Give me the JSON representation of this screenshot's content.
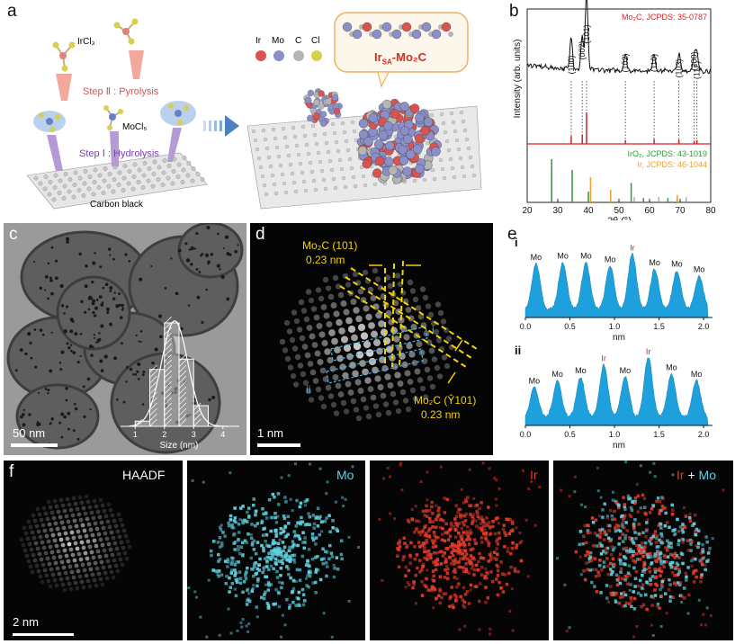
{
  "panels": {
    "a": {
      "label": "a",
      "irCl3": "IrCl₃",
      "moCl5": "MoCl₅",
      "step2": "Step Ⅱ : Pyrolysis",
      "step1": "Step Ⅰ : Hydrolysis",
      "carbon": "Carbon black",
      "legend": [
        "Ir",
        "Mo",
        "C",
        "Cl"
      ],
      "legend_colors": [
        "#d9534f",
        "#8a8fc9",
        "#b5b5b5",
        "#d8d04a"
      ],
      "product": "Ir",
      "product_sub": "SA",
      "product_rest": "-Mo₂C"
    },
    "c": {
      "label": "c",
      "scale": "50 nm",
      "hist_xlabel": "Size (nm)",
      "hist_ticks": [
        "1",
        "2",
        "3",
        "4"
      ]
    },
    "d": {
      "label": "d",
      "top_annot": "Mo₂C (101)",
      "top_dist": "0.23 nm",
      "bot_annot": "Mo₂C (Ŷ1​01)",
      "bot_dist": "0.23 nm",
      "line_i": "i",
      "line_ii": "ii",
      "scale": "1 nm"
    },
    "f": {
      "label": "f",
      "haadf": "HAADF",
      "mo": "Mo",
      "ir": "Ir",
      "overlay_ir": "Ir",
      "overlay_plus": " + ",
      "overlay_mo": "Mo",
      "scale": "2 nm"
    }
  },
  "chart_data": [
    {
      "id": "b",
      "panel_label": "b",
      "type": "line",
      "xlabel": "2θ (°)",
      "ylabel": "Intensity (arb. units)",
      "xlim": [
        20,
        80
      ],
      "x_ticks": [
        20,
        30,
        40,
        50,
        60,
        70,
        80
      ],
      "legend_mo2c": "Mo₂C, JCPDS: 35-0787",
      "legend_iro2": "IrO₂, JCPDS: 43-1019",
      "legend_ir": "Ir, JCPDS: 46-1044",
      "peaks": [
        {
          "label": "(100)",
          "x": 34.4
        },
        {
          "label": "(002)",
          "x": 38.0
        },
        {
          "label": "(101)",
          "x": 39.4
        },
        {
          "label": "(102)",
          "x": 52.1
        },
        {
          "label": "(110)",
          "x": 61.5
        },
        {
          "label": "(103)",
          "x": 69.6
        },
        {
          "label": "(200)",
          "x": 74.6
        },
        {
          "label": "(112)",
          "x": 75.5
        }
      ],
      "ref_mo2c": [
        [
          34.4,
          0.25
        ],
        [
          38.0,
          0.3
        ],
        [
          39.4,
          1.0
        ],
        [
          52.1,
          0.12
        ],
        [
          61.5,
          0.15
        ],
        [
          69.6,
          0.14
        ],
        [
          74.6,
          0.1
        ],
        [
          75.5,
          0.12
        ]
      ],
      "ref_iro2": [
        [
          28.0,
          1.0
        ],
        [
          34.7,
          0.75
        ],
        [
          40.0,
          0.25
        ],
        [
          54.0,
          0.45
        ],
        [
          58.0,
          0.1
        ],
        [
          66.0,
          0.1
        ],
        [
          69.0,
          0.08
        ]
      ],
      "ref_ir": [
        [
          40.7,
          1.0
        ],
        [
          47.3,
          0.5
        ],
        [
          69.1,
          0.3
        ],
        [
          83.5,
          0.3
        ]
      ]
    },
    {
      "id": "c-hist",
      "type": "bar",
      "xlabel": "Size (nm)",
      "xlim": [
        0.5,
        4.5
      ],
      "x": [
        1.25,
        1.75,
        2.25,
        2.75,
        3.25
      ],
      "values": [
        0.05,
        0.55,
        1.0,
        0.65,
        0.2
      ],
      "fit": "gaussian"
    },
    {
      "id": "e-i",
      "sub_label": "i",
      "type": "area",
      "xlabel": "nm",
      "xlim": [
        0,
        2.1
      ],
      "x_ticks": [
        "0.0",
        "0.5",
        "1.0",
        "1.5",
        "2.0"
      ],
      "peaks": [
        {
          "label": "Mo",
          "x": 0.12,
          "h": 0.68,
          "el": "Mo"
        },
        {
          "label": "Mo",
          "x": 0.42,
          "h": 0.7,
          "el": "Mo"
        },
        {
          "label": "Mo",
          "x": 0.68,
          "h": 0.7,
          "el": "Mo"
        },
        {
          "label": "Mo",
          "x": 0.95,
          "h": 0.65,
          "el": "Mo"
        },
        {
          "label": "Ir",
          "x": 1.2,
          "h": 0.82,
          "el": "Ir"
        },
        {
          "label": "Mo",
          "x": 1.45,
          "h": 0.6,
          "el": "Mo"
        },
        {
          "label": "Mo",
          "x": 1.7,
          "h": 0.58,
          "el": "Mo"
        },
        {
          "label": "Mo",
          "x": 1.95,
          "h": 0.5,
          "el": "Mo"
        }
      ]
    },
    {
      "id": "e-ii",
      "sub_label": "ii",
      "type": "area",
      "xlabel": "nm",
      "xlim": [
        0,
        2.1
      ],
      "x_ticks": [
        "0.0",
        "0.5",
        "1.0",
        "1.5",
        "2.0"
      ],
      "peaks": [
        {
          "label": "Mo",
          "x": 0.1,
          "h": 0.45,
          "el": "Mo"
        },
        {
          "label": "Mo",
          "x": 0.36,
          "h": 0.55,
          "el": "Mo"
        },
        {
          "label": "Mo",
          "x": 0.62,
          "h": 0.6,
          "el": "Mo"
        },
        {
          "label": "Ir",
          "x": 0.88,
          "h": 0.78,
          "el": "Ir"
        },
        {
          "label": "Mo",
          "x": 1.12,
          "h": 0.6,
          "el": "Mo"
        },
        {
          "label": "Ir",
          "x": 1.38,
          "h": 0.9,
          "el": "Ir"
        },
        {
          "label": "Mo",
          "x": 1.64,
          "h": 0.65,
          "el": "Mo"
        },
        {
          "label": "Mo",
          "x": 1.92,
          "h": 0.55,
          "el": "Mo"
        }
      ]
    }
  ]
}
